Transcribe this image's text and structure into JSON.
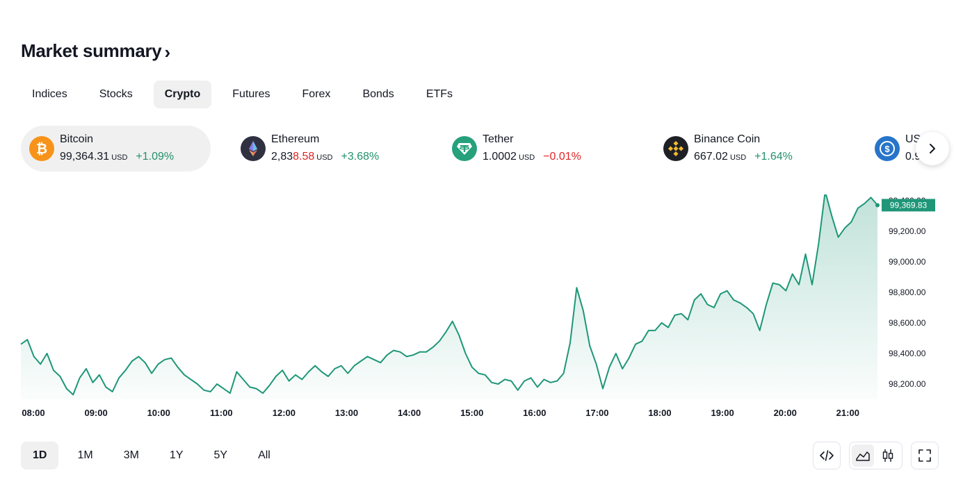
{
  "header": {
    "title": "Market summary",
    "chevron": "›"
  },
  "tabs": [
    {
      "label": "Indices"
    },
    {
      "label": "Stocks"
    },
    {
      "label": "Crypto",
      "active": true
    },
    {
      "label": "Futures"
    },
    {
      "label": "Forex"
    },
    {
      "label": "Bonds"
    },
    {
      "label": "ETFs"
    }
  ],
  "tickers": [
    {
      "name": "Bitcoin",
      "price": "99,364.31",
      "price_plain": "99,364.31",
      "price_hl": "",
      "currency": "USD",
      "change": "+1.09%",
      "direction": "up",
      "icon": "bitcoin-icon",
      "color": "#f7931a"
    },
    {
      "name": "Ethereum",
      "price": "2,838.58",
      "price_plain": "2,83",
      "price_hl": "8.58",
      "currency": "USD",
      "change": "+3.68%",
      "direction": "up",
      "icon": "ethereum-icon",
      "color": "#2f3140"
    },
    {
      "name": "Tether",
      "price": "1.0002",
      "price_plain": "1.0002",
      "price_hl": "",
      "currency": "USD",
      "change": "−0.01%",
      "direction": "down",
      "icon": "tether-icon",
      "color": "#26a17b"
    },
    {
      "name": "Binance Coin",
      "price": "667.02",
      "price_plain": "667.02",
      "price_hl": "",
      "currency": "USD",
      "change": "+1.64%",
      "direction": "up",
      "icon": "binance-icon",
      "color": "#1e2026"
    },
    {
      "name": "US",
      "price": "0.9",
      "price_plain": "0.9",
      "price_hl": "",
      "currency": "",
      "change": "",
      "direction": "up",
      "icon": "usdc-icon",
      "color": "#2775ca"
    }
  ],
  "next_button": {
    "icon": "chevron-right-icon"
  },
  "chart_data": {
    "type": "area",
    "series": [
      {
        "values": [
          98460,
          98490,
          98380,
          98330,
          98400,
          98290,
          98250,
          98170,
          98130,
          98240,
          98300,
          98210,
          98260,
          98180,
          98150,
          98240,
          98290,
          98350,
          98380,
          98340,
          98270,
          98330,
          98360,
          98370,
          98310,
          98260,
          98230,
          98200,
          98160,
          98150,
          98200,
          98170,
          98140,
          98280,
          98230,
          98180,
          98170,
          98140,
          98190,
          98250,
          98290,
          98220,
          98260,
          98230,
          98280,
          98320,
          98280,
          98250,
          98300,
          98320,
          98270,
          98320,
          98350,
          98380,
          98360,
          98340,
          98390,
          98420,
          98410,
          98380,
          98390,
          98410,
          98410,
          98440,
          98480,
          98540,
          98610,
          98520,
          98400,
          98310,
          98270,
          98260,
          98210,
          98200,
          98230,
          98220,
          98160,
          98220,
          98240,
          98180,
          98230,
          98210,
          98220,
          98270,
          98470,
          98830,
          98680,
          98450,
          98330,
          98170,
          98310,
          98400,
          98300,
          98370,
          98460,
          98480,
          98550,
          98550,
          98600,
          98570,
          98650,
          98660,
          98620,
          98750,
          98790,
          98720,
          98700,
          98790,
          98810,
          98750,
          98730,
          98700,
          98660,
          98550,
          98720,
          98860,
          98850,
          98810,
          98920,
          98850,
          99050,
          98850,
          99120,
          99460,
          99300,
          99160,
          99220,
          99260,
          99350,
          99380,
          99420,
          99369.83
        ]
      }
    ],
    "x_ticks": [
      "08:00",
      "09:00",
      "10:00",
      "11:00",
      "12:00",
      "13:00",
      "14:00",
      "15:00",
      "16:00",
      "17:00",
      "18:00",
      "19:00",
      "20:00",
      "21:00"
    ],
    "y_ticks": [
      "98,200.00",
      "98,400.00",
      "98,600.00",
      "98,800.00",
      "99,000.00",
      "99,200.00",
      "99,400.00"
    ],
    "ylim": [
      98100,
      99440
    ],
    "last_value_label": "99,369.83",
    "line_color": "#1e9677",
    "fill_color": "#1e9677",
    "grid": false
  },
  "ranges": [
    {
      "label": "1D",
      "active": true
    },
    {
      "label": "1M"
    },
    {
      "label": "3M"
    },
    {
      "label": "1Y"
    },
    {
      "label": "5Y"
    },
    {
      "label": "All"
    }
  ],
  "tools": {
    "embed_icon": "code-icon",
    "area_icon": "area-chart-icon",
    "candle_icon": "candlestick-icon",
    "fullscreen_icon": "fullscreen-icon"
  }
}
